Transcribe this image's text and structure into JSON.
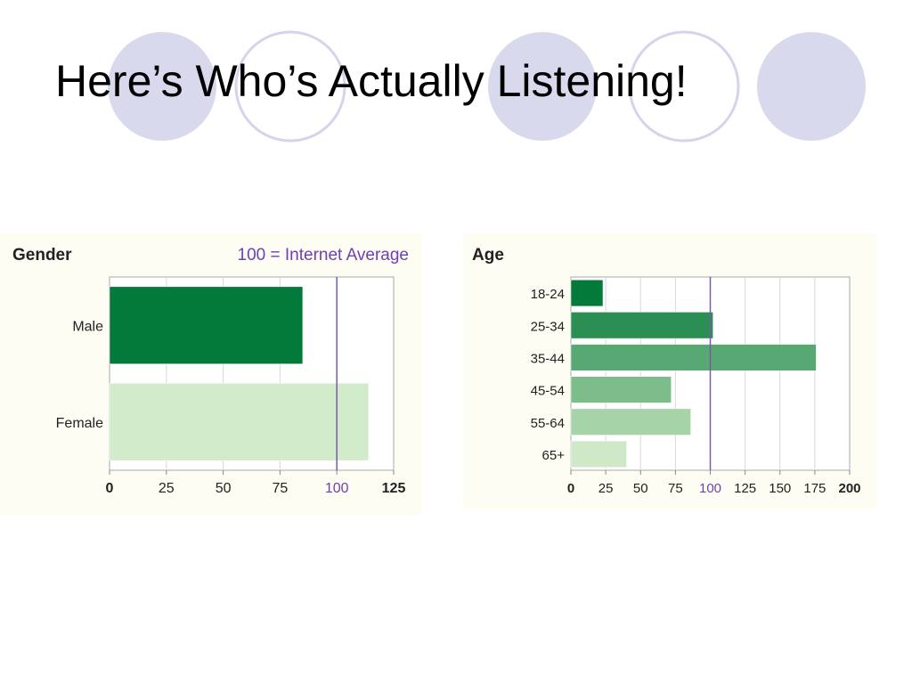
{
  "slide": {
    "title": "Here’s Who’s Actually Listening!"
  },
  "colors": {
    "circle_fill": "#d9d9ee",
    "circle_ring": "#d4d4ec",
    "panel_bg": "#fdfdf3",
    "average_line": "#7a5aa8",
    "average_text": "#6f3fb5"
  },
  "chart_data": [
    {
      "type": "bar",
      "orientation": "horizontal",
      "title": "Gender",
      "annotation": "100 = Internet Average",
      "categories": [
        "Male",
        "Female"
      ],
      "values": [
        85,
        114
      ],
      "colors": [
        "#037a3a",
        "#d1ebcb"
      ],
      "xlim": [
        0,
        125
      ],
      "xticks": [
        "0",
        "25",
        "50",
        "75",
        "100",
        "125"
      ],
      "reference_line": 100,
      "grid": true
    },
    {
      "type": "bar",
      "orientation": "horizontal",
      "title": "Age",
      "categories": [
        "18-24",
        "25-34",
        "35-44",
        "45-54",
        "55-64",
        "65+"
      ],
      "values": [
        23,
        102,
        176,
        72,
        86,
        40
      ],
      "colors": [
        "#037a3a",
        "#2b8f54",
        "#57a872",
        "#7cbd8b",
        "#a6d3a8",
        "#cfe9c8"
      ],
      "xlim": [
        0,
        200
      ],
      "xticks": [
        "0",
        "25",
        "50",
        "75",
        "100",
        "125",
        "150",
        "175",
        "200"
      ],
      "reference_line": 100,
      "grid": true
    }
  ]
}
